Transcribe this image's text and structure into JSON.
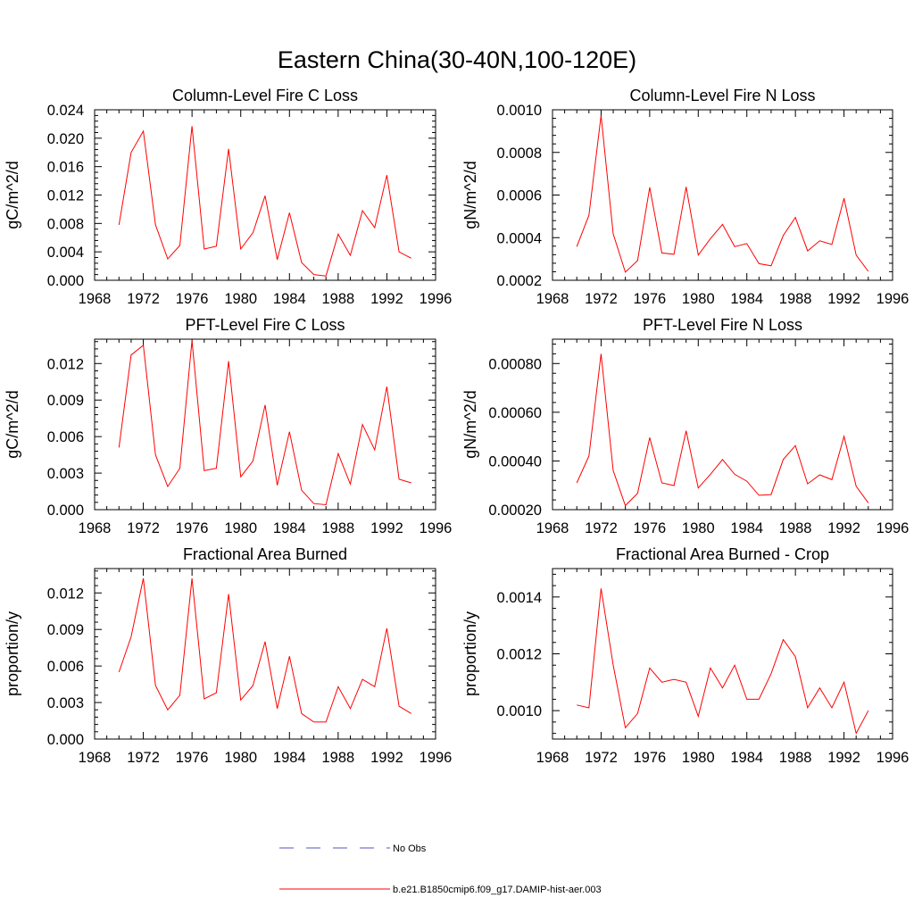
{
  "title": "Eastern China(30-40N,100-120E)",
  "colors": {
    "model": "#ff0000",
    "obs": "#5555bb",
    "axis": "#000000"
  },
  "legend": {
    "entries": [
      {
        "label": "No Obs",
        "style": "dashed",
        "color": "#5555bb"
      },
      {
        "label": "b.e21.B1850cmip6.f09_g17.DAMIP-hist-aer.003",
        "style": "solid",
        "color": "#ff0000"
      }
    ]
  },
  "chart_data": [
    {
      "type": "line",
      "title": "Column-Level Fire C Loss",
      "ylabel": "gC/m^2/d",
      "xlim": [
        1968,
        1996
      ],
      "xticks": [
        1968,
        1972,
        1976,
        1980,
        1984,
        1988,
        1992,
        1996
      ],
      "ylim": [
        0,
        0.024
      ],
      "yticks": [
        "0.000",
        "0.004",
        "0.008",
        "0.012",
        "0.016",
        "0.020",
        "0.024"
      ],
      "x": [
        1970,
        1971,
        1972,
        1973,
        1974,
        1975,
        1976,
        1977,
        1978,
        1979,
        1980,
        1981,
        1982,
        1983,
        1984,
        1985,
        1986,
        1987,
        1988,
        1989,
        1990,
        1991,
        1992,
        1993,
        1994
      ],
      "series": [
        {
          "name": "b.e21.B1850cmip6.f09_g17.DAMIP-hist-aer.003",
          "values": [
            0.0078,
            0.018,
            0.021,
            0.0078,
            0.003,
            0.0049,
            0.0217,
            0.0044,
            0.0048,
            0.0185,
            0.0044,
            0.0067,
            0.0119,
            0.0029,
            0.0095,
            0.0025,
            0.0008,
            0.0006,
            0.0065,
            0.0035,
            0.0098,
            0.0074,
            0.0148,
            0.004,
            0.0031
          ]
        }
      ]
    },
    {
      "type": "line",
      "title": "Column-Level Fire N Loss",
      "ylabel": "gN/m^2/d",
      "xlim": [
        1968,
        1996
      ],
      "xticks": [
        1968,
        1972,
        1976,
        1980,
        1984,
        1988,
        1992,
        1996
      ],
      "ylim": [
        0.0002,
        0.001
      ],
      "yticks": [
        "0.0002",
        "0.0004",
        "0.0006",
        "0.0008",
        "0.0010"
      ],
      "x": [
        1970,
        1971,
        1972,
        1973,
        1974,
        1975,
        1976,
        1977,
        1978,
        1979,
        1980,
        1981,
        1982,
        1983,
        1984,
        1985,
        1986,
        1987,
        1988,
        1989,
        1990,
        1991,
        1992,
        1993,
        1994
      ],
      "series": [
        {
          "name": "b.e21.B1850cmip6.f09_g17.DAMIP-hist-aer.003",
          "values": [
            0.000358,
            0.000505,
            0.000973,
            0.000418,
            0.000238,
            0.000292,
            0.000636,
            0.000328,
            0.000322,
            0.000638,
            0.000318,
            0.000395,
            0.000462,
            0.000358,
            0.000372,
            0.000278,
            0.000268,
            0.00041,
            0.000495,
            0.000338,
            0.000385,
            0.000368,
            0.000585,
            0.000318,
            0.000242
          ]
        }
      ]
    },
    {
      "type": "line",
      "title": "PFT-Level Fire C Loss",
      "ylabel": "gC/m^2/d",
      "xlim": [
        1968,
        1996
      ],
      "xticks": [
        1968,
        1972,
        1976,
        1980,
        1984,
        1988,
        1992,
        1996
      ],
      "ylim": [
        0,
        0.014
      ],
      "yticks": [
        "0.000",
        "0.003",
        "0.006",
        "0.009",
        "0.012"
      ],
      "x": [
        1970,
        1971,
        1972,
        1973,
        1974,
        1975,
        1976,
        1977,
        1978,
        1979,
        1980,
        1981,
        1982,
        1983,
        1984,
        1985,
        1986,
        1987,
        1988,
        1989,
        1990,
        1991,
        1992,
        1993,
        1994
      ],
      "series": [
        {
          "name": "b.e21.B1850cmip6.f09_g17.DAMIP-hist-aer.003",
          "values": [
            0.0051,
            0.0127,
            0.0135,
            0.0045,
            0.0019,
            0.0034,
            0.0139,
            0.0032,
            0.0034,
            0.0122,
            0.0027,
            0.004,
            0.0086,
            0.002,
            0.0064,
            0.0016,
            0.0005,
            0.0004,
            0.0046,
            0.0021,
            0.007,
            0.0049,
            0.0101,
            0.0025,
            0.0022
          ]
        }
      ]
    },
    {
      "type": "line",
      "title": "PFT-Level Fire N Loss",
      "ylabel": "gN/m^2/d",
      "xlim": [
        1968,
        1996
      ],
      "xticks": [
        1968,
        1972,
        1976,
        1980,
        1984,
        1988,
        1992,
        1996
      ],
      "ylim": [
        0.0002,
        0.0009
      ],
      "yticks": [
        "0.00020",
        "0.00040",
        "0.00060",
        "0.00080"
      ],
      "x": [
        1970,
        1971,
        1972,
        1973,
        1974,
        1975,
        1976,
        1977,
        1978,
        1979,
        1980,
        1981,
        1982,
        1983,
        1984,
        1985,
        1986,
        1987,
        1988,
        1989,
        1990,
        1991,
        1992,
        1993,
        1994
      ],
      "series": [
        {
          "name": "b.e21.B1850cmip6.f09_g17.DAMIP-hist-aer.003",
          "values": [
            0.00031,
            0.00042,
            0.00084,
            0.00036,
            0.000217,
            0.000267,
            0.000496,
            0.00031,
            0.000299,
            0.000524,
            0.000289,
            0.000345,
            0.000406,
            0.000345,
            0.000317,
            0.000259,
            0.000262,
            0.000406,
            0.000463,
            0.000306,
            0.000343,
            0.000323,
            0.000501,
            0.000296,
            0.000228
          ]
        }
      ]
    },
    {
      "type": "line",
      "title": "Fractional Area Burned",
      "ylabel": "proportion/y",
      "xlim": [
        1968,
        1996
      ],
      "xticks": [
        1968,
        1972,
        1976,
        1980,
        1984,
        1988,
        1992,
        1996
      ],
      "ylim": [
        0,
        0.014
      ],
      "yticks": [
        "0.000",
        "0.003",
        "0.006",
        "0.009",
        "0.012"
      ],
      "x": [
        1970,
        1971,
        1972,
        1973,
        1974,
        1975,
        1976,
        1977,
        1978,
        1979,
        1980,
        1981,
        1982,
        1983,
        1984,
        1985,
        1986,
        1987,
        1988,
        1989,
        1990,
        1991,
        1992,
        1993,
        1994
      ],
      "series": [
        {
          "name": "b.e21.B1850cmip6.f09_g17.DAMIP-hist-aer.003",
          "values": [
            0.0055,
            0.0084,
            0.0132,
            0.0044,
            0.0024,
            0.0036,
            0.0132,
            0.0033,
            0.0038,
            0.0119,
            0.0032,
            0.0044,
            0.008,
            0.0025,
            0.0068,
            0.0021,
            0.0014,
            0.0014,
            0.0043,
            0.0025,
            0.0049,
            0.0043,
            0.0091,
            0.0027,
            0.0021
          ]
        }
      ]
    },
    {
      "type": "line",
      "title": "Fractional Area Burned - Crop",
      "ylabel": "proportion/y",
      "xlim": [
        1968,
        1996
      ],
      "xticks": [
        1968,
        1972,
        1976,
        1980,
        1984,
        1988,
        1992,
        1996
      ],
      "ylim": [
        0.0009,
        0.0015
      ],
      "yticks": [
        "0.0010",
        "0.0012",
        "0.0014"
      ],
      "x": [
        1970,
        1971,
        1972,
        1973,
        1974,
        1975,
        1976,
        1977,
        1978,
        1979,
        1980,
        1981,
        1982,
        1983,
        1984,
        1985,
        1986,
        1987,
        1988,
        1989,
        1990,
        1991,
        1992,
        1993,
        1994
      ],
      "series": [
        {
          "name": "b.e21.B1850cmip6.f09_g17.DAMIP-hist-aer.003",
          "values": [
            0.00102,
            0.00101,
            0.00143,
            0.00116,
            0.00094,
            0.00099,
            0.00115,
            0.0011,
            0.00111,
            0.0011,
            0.00098,
            0.00115,
            0.00108,
            0.00116,
            0.00104,
            0.00104,
            0.00113,
            0.00125,
            0.00119,
            0.00101,
            0.00108,
            0.00101,
            0.0011,
            0.00092,
            0.001
          ]
        }
      ]
    }
  ]
}
